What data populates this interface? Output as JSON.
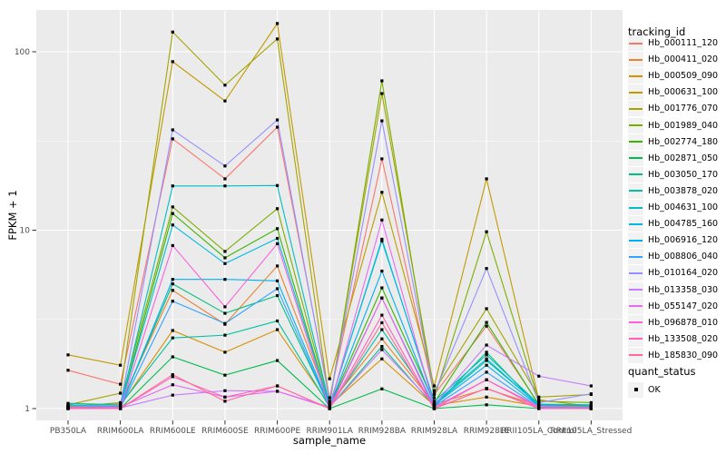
{
  "figure": {
    "xlabel": "sample_name",
    "ylabel": "FPKM + 1",
    "legend_tracking_title": "tracking_id",
    "legend_quant_title": "quant_status",
    "quant_status_label": "OK"
  },
  "style": {
    "panel_background": "#EBEBEB",
    "gridline_color": "#FFFFFF",
    "tick_color": "#333333",
    "axis_text_color": "#4D4D4D",
    "point_color": "#000000",
    "legend_key_background": "#F2F2F2"
  },
  "chart_data": {
    "type": "line",
    "title": "",
    "xlabel": "sample_name",
    "ylabel": "FPKM + 1",
    "x_type": "categorical",
    "y_scale": "log10",
    "y_ticks": [
      1,
      10,
      100
    ],
    "y_minor_ticks": [
      3.1623,
      31.623
    ],
    "ylim": [
      0.93,
      170
    ],
    "grid": true,
    "legend_position": "right",
    "point_shape": "filled-square",
    "point_legend": {
      "title": "quant_status",
      "levels": [
        {
          "label": "OK",
          "shape": "square",
          "color": "#000000"
        }
      ]
    },
    "categories": [
      "PB350LA",
      "RRIM600LA",
      "RRIM600LE",
      "RRIM600SE",
      "RRIM600PE",
      "RRIM901LA",
      "RRIM928BA",
      "RRIM928LA",
      "RRIM928LE",
      "RRII105LA_Control",
      "RRII105LA_Stressed"
    ],
    "series": [
      {
        "name": "Hb_000111_120",
        "color": "#F8766D",
        "values": [
          1.64,
          1.37,
          32.5,
          19.4,
          37.8,
          1.15,
          25.1,
          1.2,
          2.9,
          1.06,
          1.02
        ]
      },
      {
        "name": "Hb_000411_020",
        "color": "#EA8331",
        "values": [
          1.04,
          1.06,
          4.6,
          2.97,
          6.3,
          1.06,
          2.46,
          1.06,
          1.29,
          1.04,
          1.01
        ]
      },
      {
        "name": "Hb_000509_090",
        "color": "#D89000",
        "values": [
          1.03,
          1.04,
          2.74,
          2.07,
          2.77,
          1.04,
          1.9,
          1.04,
          1.16,
          1.03,
          1.0
        ]
      },
      {
        "name": "Hb_000631_100",
        "color": "#C09B00",
        "values": [
          2.0,
          1.75,
          88.0,
          53.0,
          144.0,
          1.47,
          16.3,
          1.34,
          19.4,
          1.12,
          1.03
        ]
      },
      {
        "name": "Hb_001776_070",
        "color": "#A3A500",
        "values": [
          1.05,
          1.22,
          129.0,
          65.0,
          118.0,
          1.08,
          58.3,
          1.26,
          3.63,
          1.16,
          1.2
        ]
      },
      {
        "name": "Hb_001989_040",
        "color": "#7CAE00",
        "values": [
          1.02,
          1.08,
          13.5,
          7.6,
          13.2,
          1.05,
          68.7,
          1.15,
          9.8,
          1.1,
          1.08
        ]
      },
      {
        "name": "Hb_002774_180",
        "color": "#39B600",
        "values": [
          1.01,
          1.02,
          12.4,
          7.0,
          10.2,
          1.03,
          4.75,
          1.08,
          3.04,
          1.05,
          1.04
        ]
      },
      {
        "name": "Hb_002871_050",
        "color": "#00BB4E",
        "values": [
          1.0,
          1.0,
          1.95,
          1.54,
          1.86,
          1.0,
          1.29,
          1.0,
          1.05,
          1.0,
          1.0
        ]
      },
      {
        "name": "Hb_003050_170",
        "color": "#00BF7D",
        "values": [
          1.01,
          1.02,
          5.0,
          3.42,
          4.3,
          1.02,
          2.23,
          1.03,
          2.07,
          1.02,
          1.02
        ]
      },
      {
        "name": "Hb_003878_020",
        "color": "#00C1A3",
        "values": [
          1.07,
          1.05,
          2.49,
          2.58,
          3.1,
          1.02,
          2.77,
          1.05,
          1.86,
          1.05,
          1.02
        ]
      },
      {
        "name": "Hb_004631_100",
        "color": "#00BFC4",
        "values": [
          1.05,
          1.03,
          17.7,
          17.7,
          17.8,
          1.05,
          8.7,
          1.1,
          2.0,
          1.06,
          1.05
        ]
      },
      {
        "name": "Hb_004785_160",
        "color": "#00BAE0",
        "values": [
          1.03,
          1.02,
          10.7,
          6.5,
          9.0,
          1.04,
          8.9,
          1.07,
          1.9,
          1.04,
          1.03
        ]
      },
      {
        "name": "Hb_006916_120",
        "color": "#00B0F6",
        "values": [
          1.02,
          1.01,
          5.3,
          5.3,
          5.2,
          1.03,
          5.9,
          1.05,
          1.75,
          1.03,
          1.02
        ]
      },
      {
        "name": "Hb_008806_040",
        "color": "#35A2FF",
        "values": [
          1.01,
          1.01,
          4.0,
          3.0,
          4.7,
          1.02,
          4.17,
          1.03,
          1.6,
          1.02,
          1.01
        ]
      },
      {
        "name": "Hb_010164_020",
        "color": "#9590FF",
        "values": [
          1.02,
          1.05,
          36.5,
          22.9,
          41.5,
          1.1,
          41.0,
          1.21,
          6.1,
          1.08,
          1.21
        ]
      },
      {
        "name": "Hb_013358_030",
        "color": "#C77CFF",
        "values": [
          1.0,
          1.01,
          1.19,
          1.26,
          1.25,
          1.02,
          2.14,
          1.05,
          2.27,
          1.52,
          1.34
        ]
      },
      {
        "name": "Hb_055147_020",
        "color": "#E76BF3",
        "values": [
          1.01,
          1.02,
          1.36,
          1.16,
          1.25,
          1.01,
          11.4,
          1.02,
          1.45,
          1.03,
          1.02
        ]
      },
      {
        "name": "Hb_096878_010",
        "color": "#FA62DB",
        "values": [
          1.0,
          1.0,
          8.2,
          3.72,
          8.4,
          1.0,
          4.17,
          1.0,
          1.3,
          1.0,
          1.0
        ]
      },
      {
        "name": "Hb_133508_020",
        "color": "#FF62BC",
        "values": [
          1.0,
          1.0,
          1.51,
          1.16,
          1.34,
          1.0,
          3.34,
          1.0,
          1.45,
          1.01,
          1.0
        ]
      },
      {
        "name": "Hb_185830_090",
        "color": "#FF6A98",
        "values": [
          1.02,
          1.0,
          1.55,
          1.1,
          1.34,
          1.0,
          3.03,
          1.0,
          1.3,
          1.01,
          1.0
        ]
      }
    ]
  }
}
